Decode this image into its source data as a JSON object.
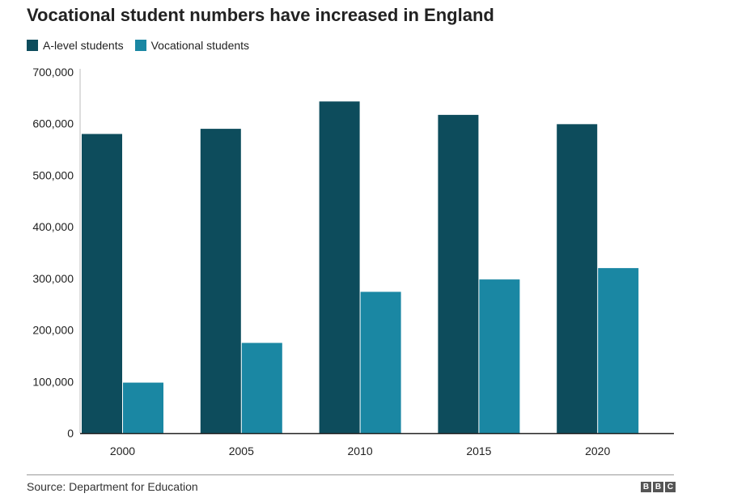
{
  "title": "Vocational student numbers have increased in England",
  "legend": [
    {
      "label": "A-level students",
      "color": "#0d4c5c"
    },
    {
      "label": "Vocational students",
      "color": "#1a87a3"
    }
  ],
  "source": "Source: Department for Education",
  "logo": [
    "B",
    "B",
    "C"
  ],
  "chart_data": {
    "type": "bar",
    "title": "Vocational student numbers have increased in England",
    "categories": [
      "2000",
      "2005",
      "2010",
      "2015",
      "2020"
    ],
    "series": [
      {
        "name": "A-level students",
        "color": "#0d4c5c",
        "values": [
          580000,
          590000,
          643000,
          617000,
          599000
        ]
      },
      {
        "name": "Vocational students",
        "color": "#1a87a3",
        "values": [
          98000,
          175000,
          274000,
          298000,
          320000
        ]
      }
    ],
    "ylim": [
      0,
      700000
    ],
    "yticks": [
      0,
      100000,
      200000,
      300000,
      400000,
      500000,
      600000,
      700000
    ],
    "ytick_labels": [
      "0",
      "100,000",
      "200,000",
      "300,000",
      "400,000",
      "500,000",
      "600,000",
      "700,000"
    ],
    "xlabel": "",
    "ylabel": "",
    "grid": false,
    "legend_position": "top-left"
  }
}
